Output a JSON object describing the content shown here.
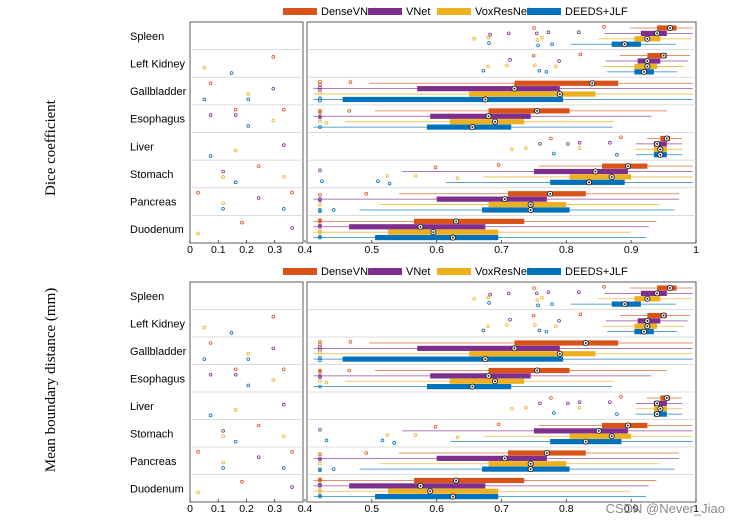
{
  "chart_data": [
    {
      "type": "boxplot",
      "ylabel": "Dice coefficient",
      "xlim": [
        0,
        1
      ],
      "axis_break_at": 0.4,
      "x_ticks": [
        "0",
        "0.1",
        "0.2",
        "0.3",
        "0.4",
        "0.5",
        "0.6",
        "0.7",
        "0.8",
        "0.9",
        "1"
      ],
      "legend": [
        "DenseVNet",
        "VNet",
        "VoxResNet",
        "DEEDS+JLF"
      ],
      "categories": [
        "Spleen",
        "Left Kidney",
        "Gallbladder",
        "Esophagus",
        "Liver",
        "Stomach",
        "Pancreas",
        "Duodenum"
      ],
      "series": [
        {
          "name": "DenseVNet",
          "color": "#d95319",
          "medians": [
            0.96,
            0.95,
            0.84,
            0.755,
            0.955,
            0.895,
            0.775,
            0.63
          ],
          "q1": [
            0.94,
            0.925,
            0.72,
            0.68,
            0.945,
            0.855,
            0.71,
            0.565
          ],
          "q3": [
            0.97,
            0.955,
            0.88,
            0.805,
            0.96,
            0.925,
            0.83,
            0.735
          ]
        },
        {
          "name": "VNet",
          "color": "#7e2f8e",
          "medians": [
            0.94,
            0.925,
            0.72,
            0.68,
            0.94,
            0.845,
            0.705,
            0.575
          ],
          "q1": [
            0.915,
            0.91,
            0.57,
            0.59,
            0.935,
            0.75,
            0.6,
            0.465
          ],
          "q3": [
            0.955,
            0.945,
            0.79,
            0.745,
            0.955,
            0.895,
            0.77,
            0.675
          ]
        },
        {
          "name": "VoxResNet",
          "color": "#edb120",
          "medians": [
            0.925,
            0.925,
            0.79,
            0.69,
            0.945,
            0.87,
            0.745,
            0.595
          ],
          "q1": [
            0.905,
            0.905,
            0.65,
            0.62,
            0.935,
            0.805,
            0.68,
            0.525
          ],
          "q3": [
            0.945,
            0.94,
            0.845,
            0.735,
            0.955,
            0.9,
            0.8,
            0.695
          ]
        },
        {
          "name": "DEEDS+JLF",
          "color": "#0072bd",
          "medians": [
            0.89,
            0.92,
            0.675,
            0.655,
            0.945,
            0.835,
            0.745,
            0.625
          ],
          "q1": [
            0.87,
            0.905,
            0.455,
            0.585,
            0.935,
            0.775,
            0.67,
            0.505
          ],
          "q3": [
            0.915,
            0.935,
            0.795,
            0.715,
            0.955,
            0.89,
            0.805,
            0.695
          ]
        }
      ]
    },
    {
      "type": "boxplot",
      "ylabel": "Mean boundary distance (mm)",
      "xlim": [
        0,
        1
      ],
      "axis_break_at": 0.4,
      "x_ticks": [
        "0",
        "0.1",
        "0.2",
        "0.3",
        "0.4",
        "0.5",
        "0.6",
        "0.7",
        "0.8",
        "0.9",
        "1"
      ],
      "legend": [
        "DenseVNet",
        "VNet",
        "VoxResNet",
        "DEEDS+JLF"
      ],
      "categories": [
        "Spleen",
        "Left Kidney",
        "Gallbladder",
        "Esophagus",
        "Liver",
        "Stomach",
        "Pancreas",
        "Duodenum"
      ],
      "series": [
        {
          "name": "DenseVNet",
          "color": "#d95319",
          "medians": [
            0.96,
            0.95,
            0.83,
            0.755,
            0.955,
            0.895,
            0.77,
            0.63
          ],
          "q1": [
            0.94,
            0.925,
            0.72,
            0.68,
            0.945,
            0.855,
            0.71,
            0.565
          ],
          "q3": [
            0.97,
            0.955,
            0.88,
            0.805,
            0.96,
            0.925,
            0.83,
            0.735
          ]
        },
        {
          "name": "VNet",
          "color": "#7e2f8e",
          "medians": [
            0.94,
            0.925,
            0.72,
            0.68,
            0.94,
            0.85,
            0.705,
            0.575
          ],
          "q1": [
            0.915,
            0.91,
            0.57,
            0.59,
            0.935,
            0.75,
            0.6,
            0.465
          ],
          "q3": [
            0.955,
            0.945,
            0.79,
            0.745,
            0.955,
            0.895,
            0.77,
            0.675
          ]
        },
        {
          "name": "VoxResNet",
          "color": "#edb120",
          "medians": [
            0.925,
            0.925,
            0.79,
            0.69,
            0.945,
            0.87,
            0.745,
            0.59
          ],
          "q1": [
            0.905,
            0.905,
            0.65,
            0.62,
            0.935,
            0.805,
            0.68,
            0.525
          ],
          "q3": [
            0.945,
            0.94,
            0.845,
            0.735,
            0.955,
            0.9,
            0.8,
            0.695
          ]
        },
        {
          "name": "DEEDS+JLF",
          "color": "#0072bd",
          "medians": [
            0.89,
            0.92,
            0.675,
            0.655,
            0.94,
            0.83,
            0.745,
            0.625
          ],
          "q1": [
            0.87,
            0.905,
            0.455,
            0.585,
            0.935,
            0.775,
            0.67,
            0.505
          ],
          "q3": [
            0.915,
            0.935,
            0.795,
            0.715,
            0.955,
            0.885,
            0.805,
            0.695
          ]
        }
      ]
    }
  ],
  "watermark": "CSDN @Never_Jiao"
}
